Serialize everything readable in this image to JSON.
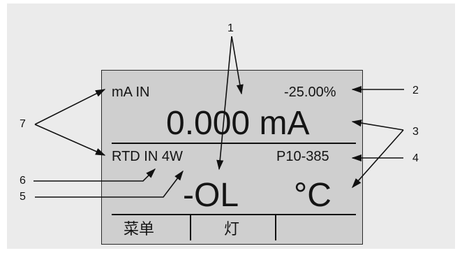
{
  "display": {
    "top_left_label": "mA IN",
    "top_right_value": "-25.00%",
    "primary_reading": "0.000 mA",
    "secondary_left_label": "RTD IN 4W",
    "secondary_right_label": "P10-385",
    "secondary_reading": "-OL",
    "secondary_unit": "°C",
    "softkeys": [
      "菜单",
      "灯",
      ""
    ]
  },
  "callouts": [
    "1",
    "2",
    "3",
    "4",
    "5",
    "6",
    "7"
  ]
}
